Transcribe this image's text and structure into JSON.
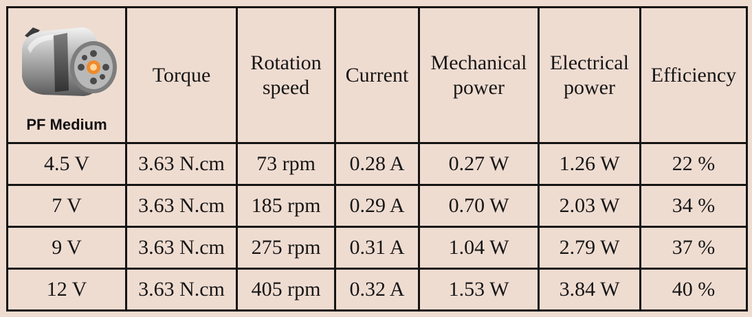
{
  "motor": {
    "label": "PF Medium",
    "icon": "lego-power-functions-motor-icon"
  },
  "headers": [
    "Torque",
    "Rotation\nspeed",
    "Current",
    "Mechanical\npower",
    "Electrical\npower",
    "Efficiency"
  ],
  "rows": [
    [
      "4.5 V",
      "3.63 N.cm",
      "73 rpm",
      "0.28 A",
      "0.27 W",
      "1.26 W",
      "22 %"
    ],
    [
      "7 V",
      "3.63 N.cm",
      "185 rpm",
      "0.29 A",
      "0.70 W",
      "2.03 W",
      "34 %"
    ],
    [
      "9 V",
      "3.63 N.cm",
      "275 rpm",
      "0.31 A",
      "1.04 W",
      "2.79 W",
      "37 %"
    ],
    [
      "12 V",
      "3.63 N.cm",
      "405 rpm",
      "0.32 A",
      "1.53 W",
      "3.84 W",
      "40 %"
    ]
  ],
  "colors": {
    "background": "#efdcd1",
    "border": "#141414",
    "text": "#161616"
  }
}
